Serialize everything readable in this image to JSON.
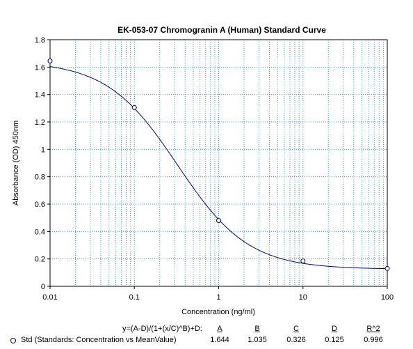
{
  "chart_data": {
    "type": "scatter",
    "title": "EK-053-07 Chromogranin A (Human) Standard Curve",
    "xlabel": "Concentration (ng/ml)",
    "ylabel": "Absorbance (OD) 450nm",
    "xscale": "log",
    "xlim": [
      0.01,
      100
    ],
    "ylim": [
      0,
      1.8
    ],
    "xticks": [
      "0.01",
      "0.1",
      "1",
      "10",
      "100"
    ],
    "yticks": [
      "0",
      "0.2",
      "0.4",
      "0.6",
      "0.8",
      "1",
      "1.2",
      "1.4",
      "1.6",
      "1.8"
    ],
    "grid": true,
    "series": [
      {
        "name": "Std (Standards: Concentration vs MeanValue)",
        "x": [
          0.01,
          0.1,
          1,
          10,
          100
        ],
        "y": [
          1.645,
          1.305,
          0.48,
          0.185,
          0.13
        ]
      }
    ],
    "fit": {
      "equation": "y=(A-D)/(1+(x/C)^B)+D:",
      "params": {
        "A": 1.644,
        "B": 1.035,
        "C": 0.326,
        "D": 0.125,
        "R2": 0.996
      }
    },
    "colors": {
      "series": "#000080",
      "grid": "#3399cc"
    }
  },
  "legend": {
    "equation": "y=(A-D)/(1+(x/C)^B)+D:",
    "series_label": "Std (Standards: Concentration vs MeanValue)",
    "headers": [
      "A",
      "B",
      "C",
      "D",
      "R^2"
    ],
    "values": [
      "1.644",
      "1.035",
      "0.326",
      "0.125",
      "0.996"
    ]
  }
}
